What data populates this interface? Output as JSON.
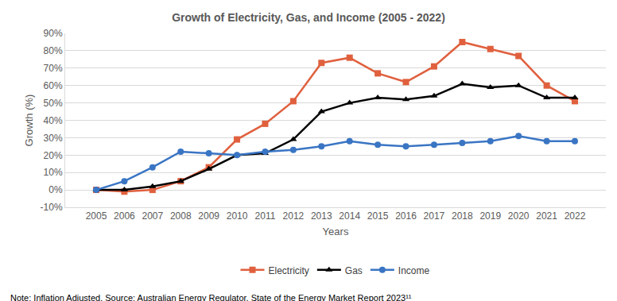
{
  "chart_data": {
    "type": "line",
    "title": "Growth of Electricity, Gas, and Income (2005 - 2022)",
    "x_label": "Years",
    "y_label": "Growth (%)",
    "annotations": [
      "Note: Inflation Adjusted. Source: Australian Energy Regulator, State of the Energy Market Report 2023¹¹"
    ],
    "categories": [
      "2005",
      "2006",
      "2007",
      "2008",
      "2009",
      "2010",
      "2011",
      "2012",
      "2013",
      "2014",
      "2015",
      "2016",
      "2017",
      "2018",
      "2019",
      "2020",
      "2021",
      "2022"
    ],
    "series": [
      {
        "name": "Electricity",
        "color": "#e0603e",
        "marker": "square",
        "values": [
          0,
          -1,
          0,
          5,
          13,
          29,
          38,
          51,
          73,
          76,
          67,
          62,
          71,
          85,
          81,
          77,
          60,
          51
        ]
      },
      {
        "name": "Gas",
        "color": "#000000",
        "marker": "triangle",
        "values": [
          0,
          0,
          2,
          5,
          12,
          20,
          21,
          29,
          45,
          50,
          53,
          52,
          54,
          61,
          59,
          60,
          53,
          53
        ]
      },
      {
        "name": "Income",
        "color": "#3a75c4",
        "marker": "circle",
        "values": [
          0,
          5,
          13,
          22,
          21,
          20,
          22,
          23,
          25,
          28,
          26,
          25,
          26,
          27,
          28,
          31,
          28,
          28
        ]
      }
    ],
    "ylim": [
      -10,
      90
    ],
    "yticks": [
      {
        "value": -10,
        "label": "-10%"
      },
      {
        "value": 0,
        "label": "0%"
      },
      {
        "value": 10,
        "label": "10%"
      },
      {
        "value": 20,
        "label": "20%"
      },
      {
        "value": 30,
        "label": "30%"
      },
      {
        "value": 40,
        "label": "40%"
      },
      {
        "value": 50,
        "label": "50%"
      },
      {
        "value": 60,
        "label": "60%"
      },
      {
        "value": 70,
        "label": "70%"
      },
      {
        "value": 80,
        "label": "80%"
      },
      {
        "value": 90,
        "label": "90%"
      }
    ],
    "grid": true,
    "legend": "bottom"
  }
}
